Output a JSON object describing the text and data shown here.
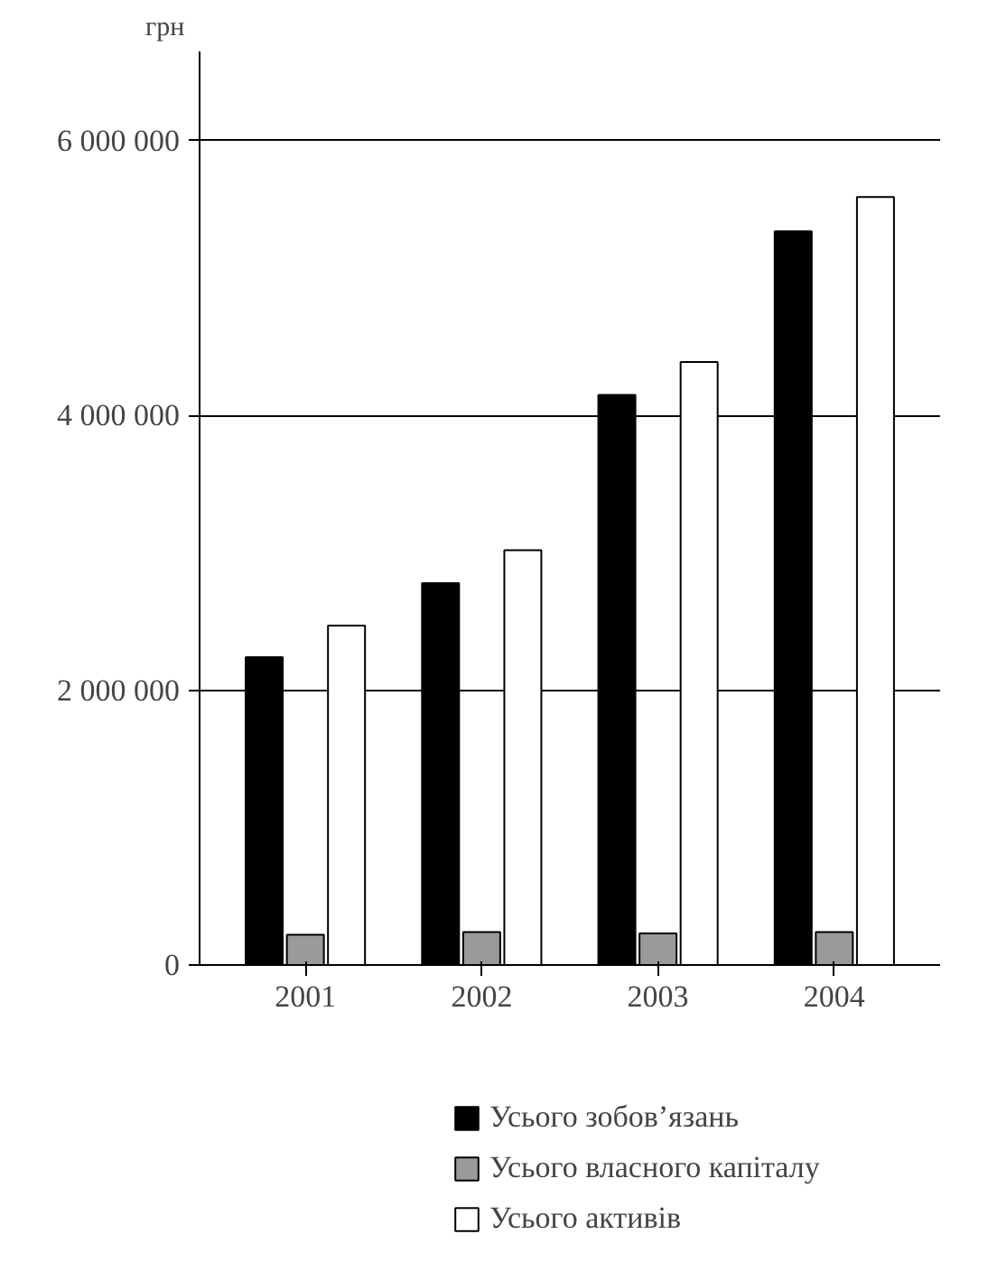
{
  "chart_data": {
    "type": "bar",
    "ylabel": "грн",
    "categories": [
      "2001",
      "2002",
      "2003",
      "2004"
    ],
    "series": [
      {
        "name": "Усього зобов’язань",
        "color": "#000000",
        "values": [
          2240000,
          2780000,
          4150000,
          5340000
        ]
      },
      {
        "name": "Усього власного капіталу",
        "color": "#9a9a9a",
        "values": [
          220000,
          240000,
          230000,
          240000
        ]
      },
      {
        "name": "Усього активів",
        "color": "#ffffff",
        "values": [
          2470000,
          3020000,
          4390000,
          5590000
        ]
      }
    ],
    "ylim": [
      0,
      6650000
    ],
    "yticks": [
      {
        "value": 0,
        "label": "0"
      },
      {
        "value": 2000000,
        "label": "2 000 000"
      },
      {
        "value": 4000000,
        "label": "4 000 000"
      },
      {
        "value": 6000000,
        "label": "6 000 000"
      }
    ],
    "grid": "y",
    "legend": "bottom"
  }
}
